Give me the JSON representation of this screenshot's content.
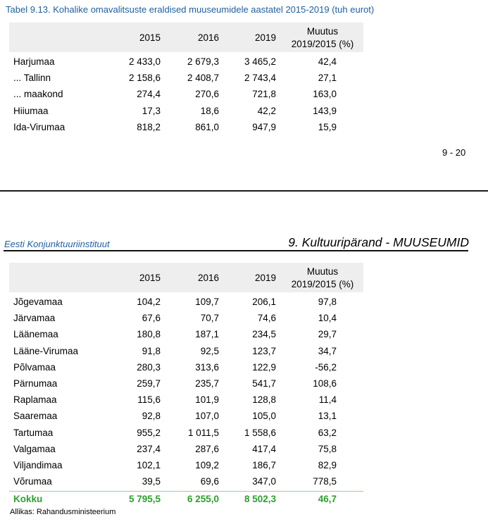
{
  "caption": "Tabel 9.13. Kohalike omavalitsuste eraldised muuseumidele aastatel 2015-2019 (tuh eurot)",
  "columns": {
    "y2015": "2015",
    "y2016": "2016",
    "y2019": "2019",
    "change_line1": "Muutus",
    "change_line2": "2019/2015 (%)"
  },
  "table1_rows": [
    {
      "name": "Harjumaa",
      "v2015": "2 433,0",
      "v2016": "2 679,3",
      "v2019": "3 465,2",
      "change": "42,4"
    },
    {
      "name": "... Tallinn",
      "v2015": "2 158,6",
      "v2016": "2 408,7",
      "v2019": "2 743,4",
      "change": "27,1"
    },
    {
      "name": "... maakond",
      "v2015": "274,4",
      "v2016": "270,6",
      "v2019": "721,8",
      "change": "163,0"
    },
    {
      "name": "Hiiumaa",
      "v2015": "17,3",
      "v2016": "18,6",
      "v2019": "42,2",
      "change": "143,9"
    },
    {
      "name": "Ida-Virumaa",
      "v2015": "818,2",
      "v2016": "861,0",
      "v2019": "947,9",
      "change": "15,9"
    }
  ],
  "page_number": "9 - 20",
  "header": {
    "institute": "Eesti Konjunktuuriinstituut",
    "section": "9. Kultuuripärand - MUUSEUMID"
  },
  "table2_rows": [
    {
      "name": "Jõgevamaa",
      "v2015": "104,2",
      "v2016": "109,7",
      "v2019": "206,1",
      "change": "97,8"
    },
    {
      "name": "Järvamaa",
      "v2015": "67,6",
      "v2016": "70,7",
      "v2019": "74,6",
      "change": "10,4"
    },
    {
      "name": "Läänemaa",
      "v2015": "180,8",
      "v2016": "187,1",
      "v2019": "234,5",
      "change": "29,7"
    },
    {
      "name": "Lääne-Virumaa",
      "v2015": "91,8",
      "v2016": "92,5",
      "v2019": "123,7",
      "change": "34,7"
    },
    {
      "name": "Põlvamaa",
      "v2015": "280,3",
      "v2016": "313,6",
      "v2019": "122,9",
      "change": "-56,2"
    },
    {
      "name": "Pärnumaa",
      "v2015": "259,7",
      "v2016": "235,7",
      "v2019": "541,7",
      "change": "108,6"
    },
    {
      "name": "Raplamaa",
      "v2015": "115,6",
      "v2016": "101,9",
      "v2019": "128,8",
      "change": "11,4"
    },
    {
      "name": "Saaremaa",
      "v2015": "92,8",
      "v2016": "107,0",
      "v2019": "105,0",
      "change": "13,1"
    },
    {
      "name": "Tartumaa",
      "v2015": "955,2",
      "v2016": "1 011,5",
      "v2019": "1 558,6",
      "change": "63,2"
    },
    {
      "name": "Valgamaa",
      "v2015": "237,4",
      "v2016": "287,6",
      "v2019": "417,4",
      "change": "75,8"
    },
    {
      "name": "Viljandimaa",
      "v2015": "102,1",
      "v2016": "109,2",
      "v2019": "186,7",
      "change": "82,9"
    },
    {
      "name": "Võrumaa",
      "v2015": "39,5",
      "v2016": "69,6",
      "v2019": "347,0",
      "change": "778,5"
    }
  ],
  "total": {
    "name": "Kokku",
    "v2015": "5 795,5",
    "v2016": "6 255,0",
    "v2019": "8 502,3",
    "change": "46,7"
  },
  "source": "Allikas: Rahandusministeerium",
  "colors": {
    "caption_blue": "#1f5f9e",
    "total_green": "#2e9e2e",
    "header_gray": "#eeeeee"
  }
}
